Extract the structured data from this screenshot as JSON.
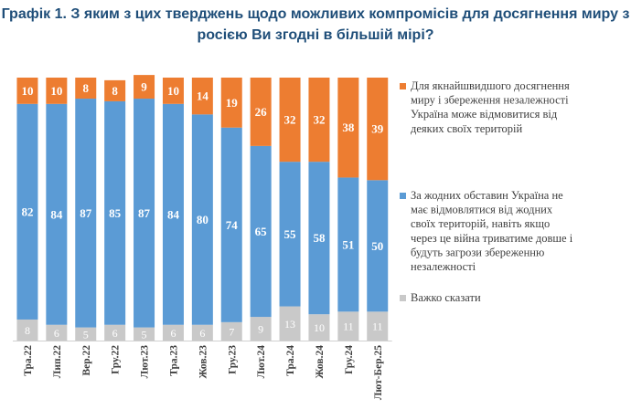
{
  "title_line1": "Графік 1. З яким з цих тверджень щодо можливих компромісів для досягнення миру з",
  "title_line2": "росією Ви згодні в більшій мірі?",
  "colors": {
    "orange": "#ED7D31",
    "blue": "#5B9BD5",
    "gray": "#C9C9C9"
  },
  "chart_data": {
    "type": "bar",
    "stacked": true,
    "categories": [
      "Тра.22",
      "Лип.22",
      "Вер.22",
      "Гру.22",
      "Лют.23",
      "Тра.23",
      "Жов.23",
      "Гру.23",
      "Лют.24",
      "Тра.24",
      "Жов.24",
      "Гру.24",
      "Лют-Бер.25"
    ],
    "series": [
      {
        "name": "Важко сказати",
        "color": "#C9C9C9",
        "values": [
          8,
          6,
          5,
          6,
          5,
          6,
          6,
          7,
          9,
          13,
          10,
          11,
          11
        ]
      },
      {
        "name": "За жодних обставин Україна не має відмовлятися від жодних своїх територій, навіть якщо через це війна триватиме довше і будуть загрози збереженню незалежності",
        "color": "#5B9BD5",
        "values": [
          82,
          84,
          87,
          85,
          87,
          84,
          80,
          74,
          65,
          55,
          58,
          51,
          50
        ]
      },
      {
        "name": "Для якнайшвидшого досягнення миру і збереження незалежності Україна може відмовитися від деяких своїх територій",
        "color": "#ED7D31",
        "values": [
          10,
          10,
          8,
          8,
          9,
          10,
          14,
          19,
          26,
          32,
          32,
          38,
          39
        ]
      }
    ],
    "ylim": [
      0,
      100
    ],
    "grid": false,
    "legend_position": "right"
  },
  "legend": [
    {
      "color": "#ED7D31",
      "lines": [
        "Для якнайшвидшого досягнення",
        "миру і збереження незалежності",
        "Україна може відмовитися від",
        "деяких своїх територій"
      ]
    },
    {
      "color": "#5B9BD5",
      "lines": [
        "За жодних обставин Україна не",
        "має відмовлятися від жодних",
        "своїх територій, навіть якщо",
        "через це війна триватиме довше і",
        "будуть загрози збереженню",
        "незалежності"
      ]
    },
    {
      "color": "#C9C9C9",
      "lines": [
        "Важко сказати"
      ]
    }
  ]
}
